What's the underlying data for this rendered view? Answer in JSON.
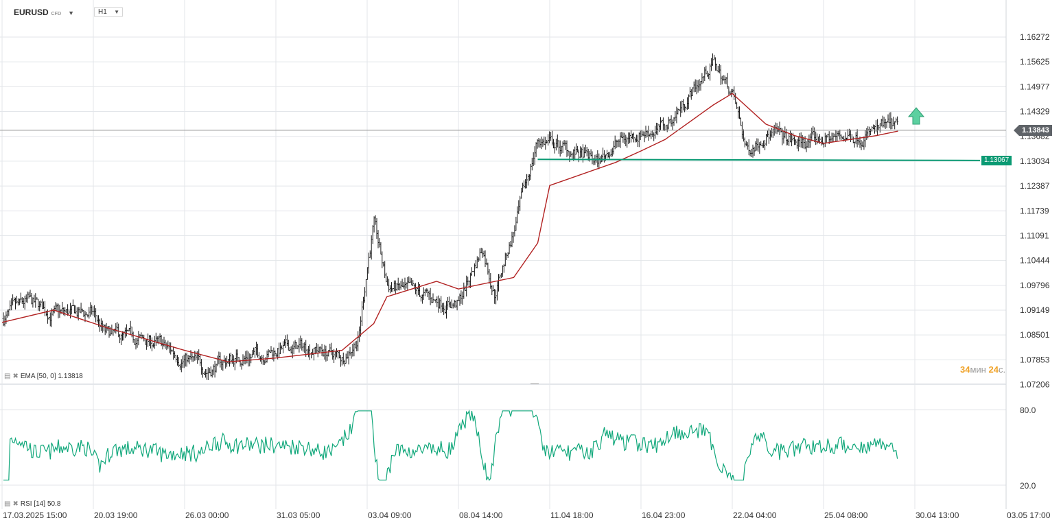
{
  "header": {
    "symbol": "EURUSD",
    "symbol_type": "CFD",
    "timeframe": "H1"
  },
  "price_axis": {
    "labels": [
      "1.16272",
      "1.15625",
      "1.14977",
      "1.14329",
      "1.13682",
      "1.13034",
      "1.12387",
      "1.11739",
      "1.11091",
      "1.10444",
      "1.09796",
      "1.09149",
      "1.08501",
      "1.07853",
      "1.07206"
    ],
    "current_price": "1.13843",
    "support_price": "1.13067"
  },
  "time_axis": {
    "labels": [
      "17.03.2025  15:00",
      "20.03  19:00",
      "26.03  00:00",
      "31.03  05:00",
      "03.04  09:00",
      "08.04  14:00",
      "11.04  18:00",
      "16.04  23:00",
      "22.04  04:00",
      "25.04  08:00",
      "30.04  13:00",
      "03.05  17:00"
    ]
  },
  "indicators": {
    "ema_label": "EMA [50, 0]",
    "ema_value": "1.13818",
    "rsi_label": "RSI [14]",
    "rsi_value": "50.8",
    "rsi_levels": [
      "80.0",
      "20.0"
    ]
  },
  "countdown": {
    "minutes": "34",
    "minutes_unit": "мин",
    "seconds": "24",
    "seconds_unit": "с."
  },
  "colors": {
    "candles": "#1a1a1a",
    "ema": "#b22222",
    "rsi": "#0fa77a",
    "support": "#0a9a73",
    "arrow": "#3ac08f",
    "grid": "#e3e6ea",
    "current_line": "#8c8c8c"
  },
  "chart_data": {
    "type": "line",
    "title": "EURUSD H1",
    "y_range": [
      1.07206,
      1.16272
    ],
    "rsi_range": [
      20.0,
      80.0
    ],
    "x_start": "17.03.2025 15:00",
    "x_end": "03.05 17:00",
    "price_path": [
      [
        "17.03 15:00",
        1.089
      ],
      [
        "18.03 12:00",
        1.0935
      ],
      [
        "19.03 10:00",
        1.0905
      ],
      [
        "20.03 19:00",
        1.0905
      ],
      [
        "21.03 12:00",
        1.085
      ],
      [
        "24.03 08:00",
        1.083
      ],
      [
        "25.03 12:00",
        1.08
      ],
      [
        "26.03 00:00",
        1.079
      ],
      [
        "27.03 08:00",
        1.076
      ],
      [
        "28.03 12:00",
        1.0785
      ],
      [
        "31.03 05:00",
        1.081
      ],
      [
        "01.04 10:00",
        1.082
      ],
      [
        "02.04 12:00",
        1.079
      ],
      [
        "03.04 02:00",
        1.0845
      ],
      [
        "03.04 09:00",
        1.103
      ],
      [
        "03.04 18:00",
        1.114
      ],
      [
        "04.04 12:00",
        1.098
      ],
      [
        "07.04 08:00",
        1.094
      ],
      [
        "08.04 14:00",
        1.093
      ],
      [
        "09.04 10:00",
        1.108
      ],
      [
        "09.04 20:00",
        1.096
      ],
      [
        "10.04 12:00",
        1.112
      ],
      [
        "11.04 08:00",
        1.136
      ],
      [
        "11.04 18:00",
        1.135
      ],
      [
        "14.04 12:00",
        1.13
      ],
      [
        "15.04 12:00",
        1.135
      ],
      [
        "16.04 23:00",
        1.138
      ],
      [
        "18.04 08:00",
        1.139
      ],
      [
        "21.04 02:00",
        1.156
      ],
      [
        "22.04 04:00",
        1.148
      ],
      [
        "22.04 16:00",
        1.133
      ],
      [
        "23.04 08:00",
        1.138
      ],
      [
        "24.04 08:00",
        1.135
      ],
      [
        "25.04 08:00",
        1.136
      ],
      [
        "28.04 08:00",
        1.138
      ],
      [
        "29.04 06:00",
        1.1395
      ],
      [
        "29.04 14:00",
        1.13843
      ]
    ],
    "ema_path": [
      [
        "17.03 15:00",
        1.0883
      ],
      [
        "19.03 10:00",
        1.0915
      ],
      [
        "21.03 12:00",
        1.087
      ],
      [
        "26.03 00:00",
        1.081
      ],
      [
        "28.03 12:00",
        1.078
      ],
      [
        "31.03 05:00",
        1.079
      ],
      [
        "02.04 12:00",
        1.081
      ],
      [
        "03.04 18:00",
        1.088
      ],
      [
        "04.04 12:00",
        1.095
      ],
      [
        "07.04 08:00",
        1.099
      ],
      [
        "08.04 14:00",
        1.097
      ],
      [
        "10.04 12:00",
        1.1
      ],
      [
        "11.04 08:00",
        1.109
      ],
      [
        "11.04 18:00",
        1.124
      ],
      [
        "15.04 12:00",
        1.13
      ],
      [
        "16.04 23:00",
        1.133
      ],
      [
        "18.04 08:00",
        1.136
      ],
      [
        "21.04 02:00",
        1.145
      ],
      [
        "22.04 04:00",
        1.148
      ],
      [
        "23.04 08:00",
        1.14
      ],
      [
        "24.04 08:00",
        1.137
      ],
      [
        "25.04 08:00",
        1.135
      ],
      [
        "28.04 08:00",
        1.137
      ],
      [
        "29.04 14:00",
        1.13818
      ]
    ],
    "support_level": 1.13067
  }
}
